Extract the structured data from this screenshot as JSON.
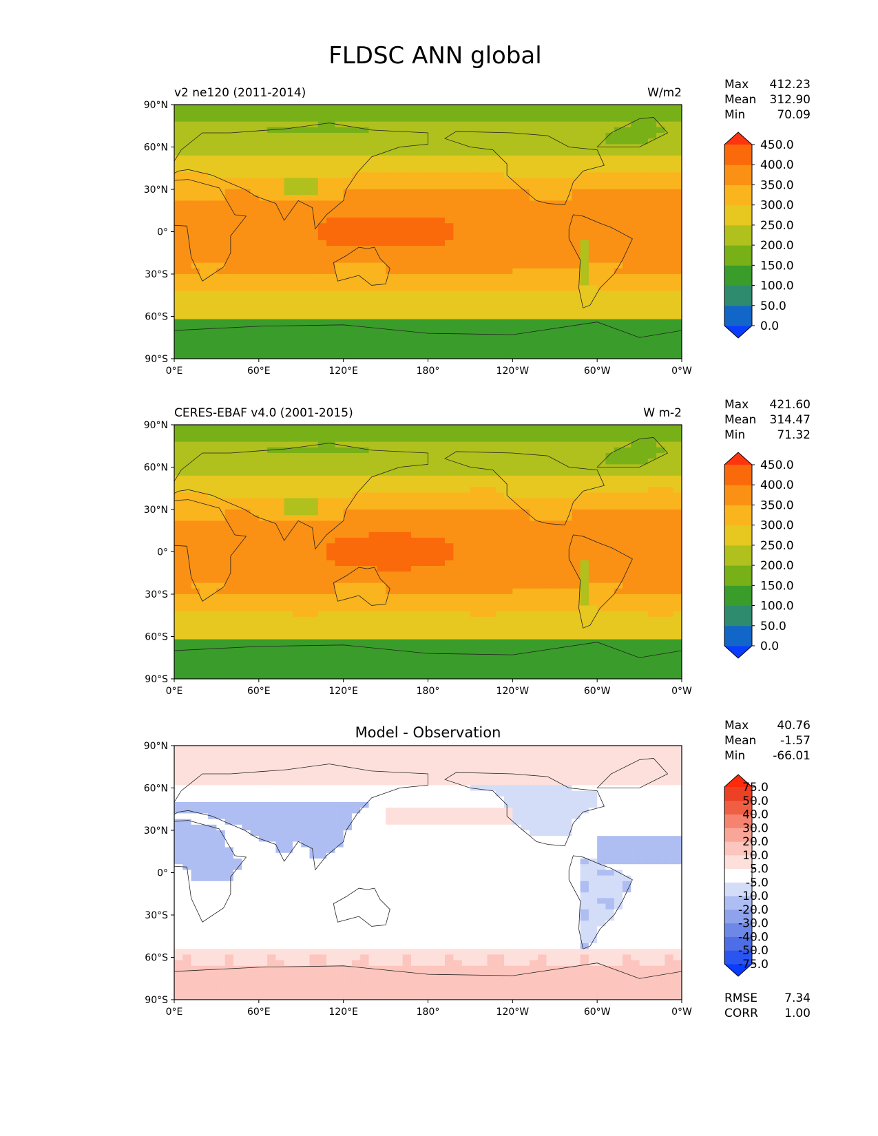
{
  "figure": {
    "title": "FLDSC ANN global"
  },
  "chart_data": [
    {
      "type": "heatmap",
      "title": "v2 ne120 (2011-2014)",
      "units": "W/m2",
      "projection": "equirectangular",
      "x_ticks": [
        "0°E",
        "60°E",
        "120°E",
        "180°",
        "120°W",
        "60°W",
        "0°W"
      ],
      "y_ticks": [
        "90°N",
        "60°N",
        "30°N",
        "0°",
        "30°S",
        "60°S",
        "90°S"
      ],
      "stats": {
        "Max": "412.23",
        "Mean": "312.90",
        "Min": "70.09"
      },
      "colorbar": {
        "levels": [
          "0.0",
          "50.0",
          "100.0",
          "150.0",
          "200.0",
          "250.0",
          "300.0",
          "350.0",
          "400.0",
          "450.0"
        ],
        "colors": [
          "#0a3cff",
          "#1166c8",
          "#2e8b6e",
          "#3a9c2a",
          "#78b018",
          "#b0c01c",
          "#e6c820",
          "#fab41e",
          "#fa9114",
          "#fa6a0a",
          "#ff3510"
        ],
        "extend": "both"
      }
    },
    {
      "type": "heatmap",
      "title": "CERES-EBAF v4.0 (2001-2015)",
      "units": "W m-2",
      "projection": "equirectangular",
      "x_ticks": [
        "0°E",
        "60°E",
        "120°E",
        "180°",
        "120°W",
        "60°W",
        "0°W"
      ],
      "y_ticks": [
        "90°N",
        "60°N",
        "30°N",
        "0°",
        "30°S",
        "60°S",
        "90°S"
      ],
      "stats": {
        "Max": "421.60",
        "Mean": "314.47",
        "Min": "71.32"
      },
      "colorbar": {
        "levels": [
          "0.0",
          "50.0",
          "100.0",
          "150.0",
          "200.0",
          "250.0",
          "300.0",
          "350.0",
          "400.0",
          "450.0"
        ],
        "colors": [
          "#0a3cff",
          "#1166c8",
          "#2e8b6e",
          "#3a9c2a",
          "#78b018",
          "#b0c01c",
          "#e6c820",
          "#fab41e",
          "#fa9114",
          "#fa6a0a",
          "#ff3510"
        ],
        "extend": "both"
      }
    },
    {
      "type": "heatmap",
      "title": "Model - Observation",
      "projection": "equirectangular",
      "x_ticks": [
        "0°E",
        "60°E",
        "120°E",
        "180°",
        "120°W",
        "60°W",
        "0°W"
      ],
      "y_ticks": [
        "90°N",
        "60°N",
        "30°N",
        "0°",
        "30°S",
        "60°S",
        "90°S"
      ],
      "stats": {
        "Max": "40.76",
        "Mean": "-1.57",
        "Min": "-66.01"
      },
      "metrics": {
        "RMSE": "7.34",
        "CORR": "1.00"
      },
      "colorbar": {
        "levels": [
          "-75.0",
          "-50.0",
          "-40.0",
          "-30.0",
          "-20.0",
          "-10.0",
          "-5.0",
          "5.0",
          "10.0",
          "20.0",
          "30.0",
          "40.0",
          "50.0",
          "75.0"
        ],
        "colors": [
          "#0a3cff",
          "#2a55f0",
          "#4d6ee6",
          "#6d88e6",
          "#8ea3ec",
          "#aebdf2",
          "#d4ddf8",
          "#ffffff",
          "#fde0dc",
          "#fcc5bd",
          "#f9a597",
          "#f6836f",
          "#f05f44",
          "#ec4125",
          "#ff2a0a"
        ],
        "extend": "both"
      }
    }
  ]
}
